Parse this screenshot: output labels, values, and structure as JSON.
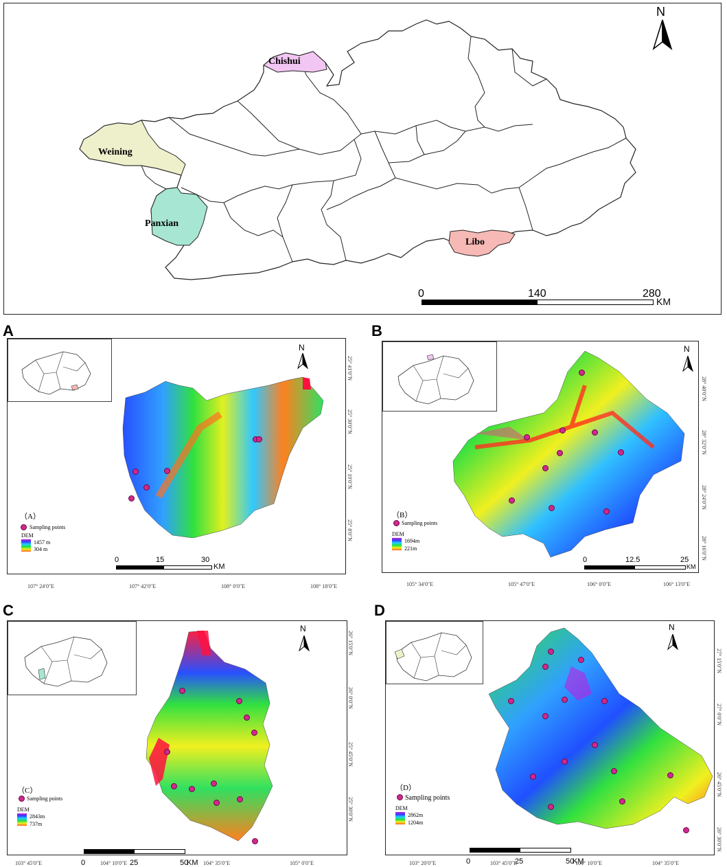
{
  "main_map": {
    "north": "N",
    "regions": [
      {
        "name": "Chishui",
        "color": "#f2c6f2"
      },
      {
        "name": "Weining",
        "color": "#eef0cc"
      },
      {
        "name": "Panxian",
        "color": "#a6e6d2"
      },
      {
        "name": "Libo",
        "color": "#f7b9b5"
      }
    ],
    "scale": {
      "labels": [
        "0",
        "140",
        "280"
      ],
      "unit": "KM"
    }
  },
  "panels": [
    {
      "letter": "A",
      "tag": "（A）",
      "legend_points": "Sampling points",
      "dem": "DEM",
      "dem_high": "1457 m",
      "dem_low": "304 m",
      "scale": [
        "0",
        "15",
        "30"
      ],
      "unit": "KM",
      "x_coords": [
        "107° 24′0″E",
        "107° 42′0″E",
        "108° 0′0″E",
        "108° 18′0″E"
      ],
      "y_coords": [
        "25° 41′0″N",
        "25° 30′0″N",
        "25° 19′0″N",
        "25° 8′0″N"
      ],
      "north": "N"
    },
    {
      "letter": "B",
      "tag": "（B）",
      "legend_points": "Sampling points",
      "dem": "DEM",
      "dem_high": "1694m",
      "dem_low": "221m",
      "scale": [
        "0",
        "12.5",
        "25"
      ],
      "unit": "KM",
      "x_coords": [
        "105° 34′0″E",
        "105° 47′0″E",
        "106° 0′0″E",
        "106° 13′0″E"
      ],
      "y_coords": [
        "28° 40′0″N",
        "28° 32′0″N",
        "28° 24′0″N",
        "28° 16′0″N"
      ],
      "north": "N"
    },
    {
      "letter": "C",
      "tag": "（C）",
      "legend_points": "Sampling points",
      "dem": "DEM",
      "dem_high": "2843m",
      "dem_low": "737m",
      "scale": [
        "0",
        "25",
        "50"
      ],
      "unit": "KM",
      "x_coords": [
        "103° 45′0″E",
        "104° 10′0″E",
        "104° 35′0″E",
        "105° 0′0″E"
      ],
      "y_coords": [
        "26° 15′0″N",
        "26° 0′0″N",
        "25° 45′0″N",
        "25° 30′0″N"
      ],
      "north": "N"
    },
    {
      "letter": "D",
      "tag": "（D）",
      "legend_points": "Sampling points",
      "dem": "DEM",
      "dem_high": "2862m",
      "dem_low": "1204m",
      "scale": [
        "0",
        "25",
        "50"
      ],
      "unit": "KM",
      "x_coords": [
        "103° 20′0″E",
        "103° 45′0″E",
        "104° 10′0″E",
        "104° 35′0″E"
      ],
      "y_coords": [
        "27° 15′0″N",
        "27° 0′0″N",
        "26° 45′0″N",
        "26° 30′0″N"
      ],
      "north": "N"
    }
  ]
}
